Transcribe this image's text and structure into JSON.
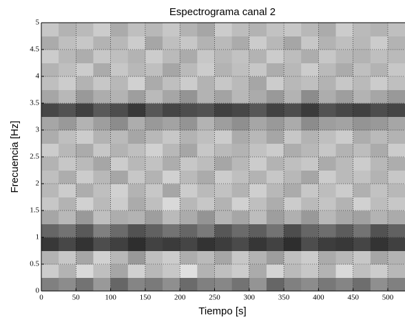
{
  "chart_data": {
    "type": "heatmap",
    "title": "Espectrograma canal 2",
    "x_label": "Tiempo [s]",
    "y_label": "Frecuencia [Hz]",
    "xlim": [
      0,
      525
    ],
    "ylim": [
      0,
      5
    ],
    "xticks": [
      0,
      50,
      100,
      150,
      200,
      250,
      300,
      350,
      400,
      450,
      500
    ],
    "yticks": [
      0,
      0.5,
      1,
      1.5,
      2,
      2.5,
      3,
      3.5,
      4,
      4.5,
      5
    ],
    "grid": true,
    "colormap": "gray",
    "x_edges": [
      0,
      25,
      50,
      75,
      100,
      125,
      150,
      175,
      200,
      225,
      250,
      275,
      300,
      325,
      350,
      375,
      400,
      425,
      450,
      475,
      500,
      525
    ],
    "y_edges": [
      0,
      0.25,
      0.5,
      0.75,
      1,
      1.25,
      1.5,
      1.75,
      2,
      2.25,
      2.5,
      2.75,
      3,
      3.25,
      3.5,
      3.75,
      4,
      4.25,
      4.5,
      4.75,
      5
    ],
    "z": [
      [
        50,
        45,
        55,
        40,
        60,
        48,
        52,
        44,
        58,
        50,
        47,
        55,
        42,
        60,
        50,
        45,
        53,
        48,
        57,
        44,
        50
      ],
      [
        20,
        30,
        15,
        25,
        35,
        18,
        28,
        22,
        12,
        30,
        25,
        20,
        33,
        17,
        27,
        22,
        30,
        15,
        25,
        20,
        28
      ],
      [
        30,
        22,
        35,
        18,
        28,
        40,
        25,
        20,
        32,
        27,
        35,
        22,
        30,
        38,
        25,
        20,
        33,
        28,
        22,
        35,
        30
      ],
      [
        78,
        72,
        80,
        70,
        75,
        82,
        74,
        77,
        73,
        80,
        76,
        71,
        79,
        74,
        82,
        70,
        76,
        78,
        73,
        80,
        75
      ],
      [
        60,
        55,
        65,
        50,
        58,
        68,
        62,
        55,
        60,
        52,
        66,
        58,
        63,
        55,
        70,
        60,
        57,
        64,
        55,
        68,
        62
      ],
      [
        35,
        28,
        40,
        25,
        32,
        30,
        38,
        27,
        33,
        42,
        29,
        35,
        26,
        38,
        31,
        40,
        28,
        34,
        37,
        30,
        33
      ],
      [
        22,
        30,
        18,
        27,
        20,
        33,
        25,
        15,
        28,
        22,
        30,
        18,
        25,
        32,
        20,
        27,
        23,
        30,
        18,
        26,
        22
      ],
      [
        28,
        20,
        32,
        25,
        18,
        30,
        22,
        35,
        20,
        27,
        24,
        30,
        19,
        28,
        33,
        22,
        26,
        20,
        31,
        24,
        28
      ],
      [
        25,
        32,
        20,
        28,
        35,
        22,
        30,
        18,
        27,
        33,
        20,
        25,
        30,
        22,
        28,
        35,
        20,
        27,
        24,
        30,
        22
      ],
      [
        30,
        22,
        27,
        35,
        20,
        28,
        24,
        32,
        22,
        26,
        35,
        28,
        20,
        30,
        25,
        22,
        33,
        27,
        20,
        28,
        32
      ],
      [
        20,
        28,
        33,
        22,
        30,
        25,
        18,
        28,
        35,
        22,
        27,
        30,
        24,
        20,
        32,
        28,
        22,
        30,
        26,
        33,
        20
      ],
      [
        32,
        25,
        20,
        30,
        27,
        35,
        28,
        22,
        30,
        25,
        20,
        33,
        28,
        35,
        22,
        30,
        25,
        20,
        32,
        27,
        30
      ],
      [
        35,
        40,
        30,
        38,
        45,
        32,
        40,
        36,
        42,
        30,
        38,
        44,
        35,
        40,
        33,
        45,
        38,
        36,
        42,
        40,
        35
      ],
      [
        72,
        68,
        75,
        65,
        70,
        78,
        66,
        73,
        70,
        68,
        75,
        72,
        66,
        74,
        70,
        77,
        68,
        72,
        75,
        70,
        73
      ],
      [
        35,
        28,
        40,
        32,
        30,
        38,
        27,
        35,
        42,
        30,
        36,
        28,
        33,
        40,
        30,
        45,
        32,
        38,
        30,
        35,
        40
      ],
      [
        25,
        20,
        30,
        22,
        28,
        18,
        33,
        25,
        20,
        30,
        22,
        27,
        35,
        20,
        28,
        25,
        30,
        22,
        27,
        20,
        25
      ],
      [
        30,
        25,
        20,
        33,
        22,
        28,
        25,
        35,
        27,
        20,
        30,
        25,
        22,
        32,
        28,
        20,
        27,
        33,
        25,
        30,
        22
      ],
      [
        20,
        28,
        32,
        22,
        25,
        30,
        20,
        27,
        33,
        22,
        28,
        24,
        30,
        20,
        26,
        32,
        22,
        28,
        30,
        25,
        27
      ],
      [
        33,
        25,
        22,
        30,
        28,
        20,
        35,
        25,
        22,
        30,
        27,
        33,
        20,
        28,
        35,
        22,
        30,
        25,
        28,
        20,
        30
      ],
      [
        22,
        30,
        27,
        20,
        33,
        25,
        28,
        22,
        30,
        35,
        20,
        26,
        30,
        24,
        22,
        28,
        33,
        20,
        27,
        30,
        25
      ]
    ]
  }
}
